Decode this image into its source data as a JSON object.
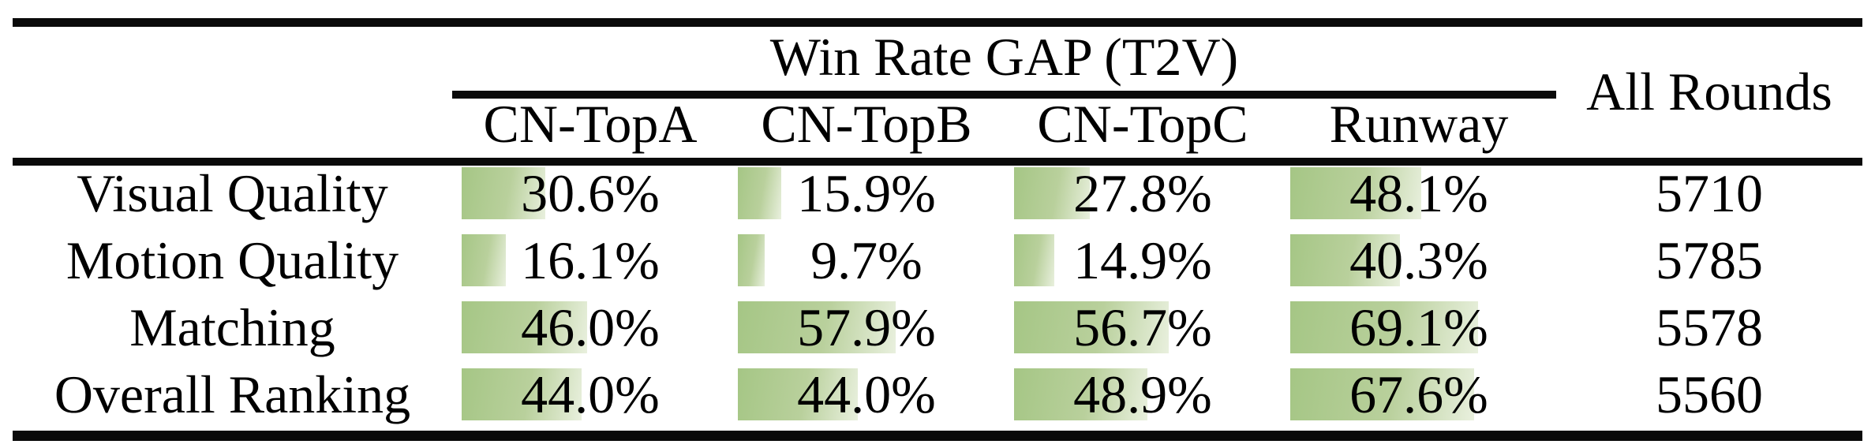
{
  "table": {
    "group_header": "Win Rate GAP (T2V)",
    "all_rounds_header": "All Rounds",
    "columns": [
      "CN-TopA",
      "CN-TopB",
      "CN-TopC",
      "Runway"
    ],
    "rows": [
      {
        "label": "Visual Quality",
        "win_rate_gap_pct": [
          30.6,
          15.9,
          27.8,
          48.1
        ],
        "all_rounds": "5710"
      },
      {
        "label": "Motion Quality",
        "win_rate_gap_pct": [
          16.1,
          9.7,
          14.9,
          40.3
        ],
        "all_rounds": "5785"
      },
      {
        "label": "Matching",
        "win_rate_gap_pct": [
          46.0,
          57.9,
          56.7,
          69.1
        ],
        "all_rounds": "5578"
      },
      {
        "label": "Overall Ranking",
        "win_rate_gap_pct": [
          44.0,
          44.0,
          48.9,
          67.6
        ],
        "all_rounds": "5560"
      }
    ]
  },
  "chart_data": {
    "type": "table",
    "title": "Win Rate GAP (T2V)",
    "columns": [
      "",
      "CN-TopA",
      "CN-TopB",
      "CN-TopC",
      "Runway",
      "All Rounds"
    ],
    "rows": [
      [
        "Visual Quality",
        "30.6%",
        "15.9%",
        "27.8%",
        "48.1%",
        "5710"
      ],
      [
        "Motion Quality",
        "16.1%",
        "9.7%",
        "14.9%",
        "40.3%",
        "5785"
      ],
      [
        "Matching",
        "46.0%",
        "57.9%",
        "56.7%",
        "69.1%",
        "5578"
      ],
      [
        "Overall Ranking",
        "44.0%",
        "44.0%",
        "48.9%",
        "67.6%",
        "5560"
      ]
    ],
    "layout_hint": "green gradient data bars behind percentage values; bar length proportional to value, 100% equals full cell width"
  },
  "colors": {
    "text": "#000000",
    "rule": "#0a0a0a",
    "bar_gradient_start": "#a5c685",
    "bar_gradient_mid": "#b9d09c",
    "bar_gradient_end": "#e9f0de"
  }
}
